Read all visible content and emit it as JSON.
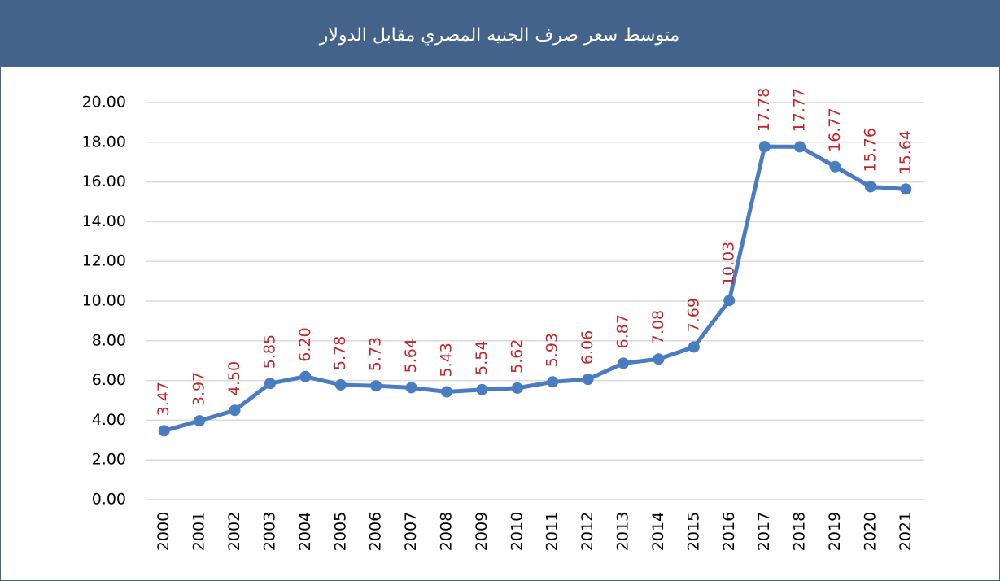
{
  "chart_data": {
    "type": "line",
    "title": "متوسط سعر صرف الجنيه المصري مقابل الدولار",
    "categories": [
      "2000",
      "2001",
      "2002",
      "2003",
      "2004",
      "2005",
      "2006",
      "2007",
      "2008",
      "2009",
      "2010",
      "2011",
      "2012",
      "2013",
      "2014",
      "2015",
      "2016",
      "2017",
      "2018",
      "2019",
      "2020",
      "2021"
    ],
    "values": [
      3.47,
      3.97,
      4.5,
      5.85,
      6.2,
      5.78,
      5.73,
      5.64,
      5.43,
      5.54,
      5.62,
      5.93,
      6.06,
      6.87,
      7.08,
      7.69,
      10.03,
      17.78,
      17.77,
      16.77,
      15.76,
      15.64
    ],
    "value_labels": [
      "3.47",
      "3.97",
      "4.50",
      "5.85",
      "6.20",
      "5.78",
      "5.73",
      "5.64",
      "5.43",
      "5.54",
      "5.62",
      "5.93",
      "6.06",
      "6.87",
      "7.08",
      "7.69",
      "10.03",
      "17.78",
      "17.77",
      "16.77",
      "15.76",
      "15.64"
    ],
    "color": "#4a7dc0",
    "label_color": "#c0272d",
    "ylim": [
      0,
      20
    ],
    "yticks": [
      {
        "value": 0,
        "label": "0.00"
      },
      {
        "value": 2,
        "label": "2.00"
      },
      {
        "value": 4,
        "label": "4.00"
      },
      {
        "value": 6,
        "label": "6.00"
      },
      {
        "value": 8,
        "label": "8.00"
      },
      {
        "value": 10,
        "label": "10.00"
      },
      {
        "value": 12,
        "label": "12.00"
      },
      {
        "value": 14,
        "label": "14.00"
      },
      {
        "value": 16,
        "label": "16.00"
      },
      {
        "value": 18,
        "label": "18.00"
      },
      {
        "value": 20,
        "label": "20.00"
      }
    ],
    "grid": true
  }
}
